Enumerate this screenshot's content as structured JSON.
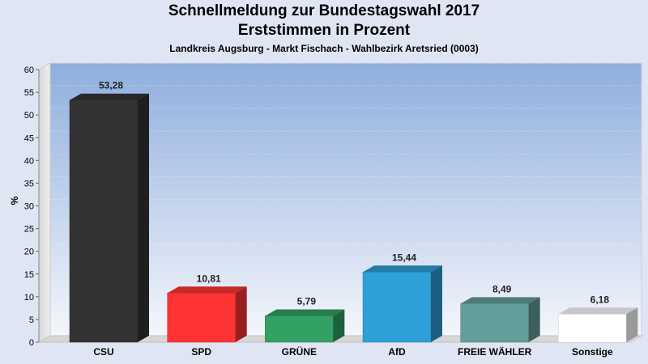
{
  "header": {
    "title": "Schnellmeldung zur Bundestagswahl 2017",
    "subtitle": "Erststimmen in Prozent",
    "caption": "Landkreis Augsburg - Markt Fischach - Wahlbezirk Aretsried (0003)"
  },
  "chart_data": {
    "type": "bar",
    "title": "Schnellmeldung zur Bundestagswahl 2017",
    "subtitle": "Erststimmen in Prozent",
    "xlabel": "",
    "ylabel": "%",
    "ylim": [
      0,
      60
    ],
    "yticks": [
      0,
      5,
      10,
      15,
      20,
      25,
      30,
      35,
      40,
      45,
      50,
      55,
      60
    ],
    "categories": [
      "CSU",
      "SPD",
      "GRÜNE",
      "AfD",
      "FREIE WÄHLER",
      "Sonstige"
    ],
    "values": [
      53.28,
      10.81,
      5.79,
      15.44,
      8.49,
      6.18
    ],
    "value_labels": [
      "53,28",
      "10,81",
      "5,79",
      "15,44",
      "8,49",
      "6,18"
    ],
    "colors": [
      "#333333",
      "#ff3333",
      "#33a064",
      "#2f9fd8",
      "#649e9a",
      "#ffffff"
    ],
    "grid": true,
    "legend": "none"
  }
}
